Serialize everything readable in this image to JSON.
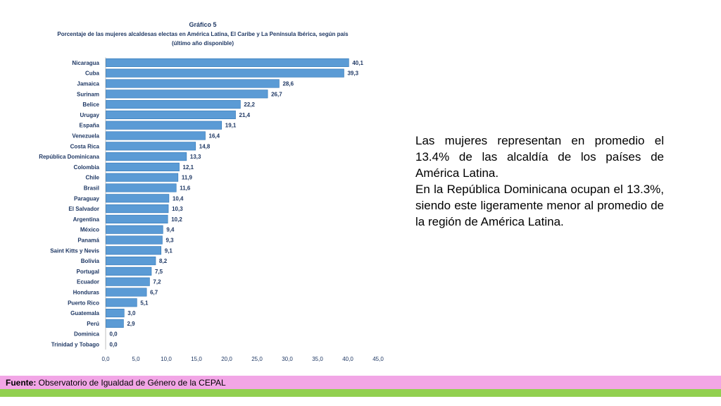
{
  "chart_data": {
    "type": "bar",
    "orientation": "horizontal",
    "title": "Gráfico 5",
    "subtitle": [
      "Porcentaje de las mujeres alcaldesas electas en América Latina, El Caribe y La Península Ibérica, según país",
      "(último año disponible)"
    ],
    "categories": [
      "Nicaragua",
      "Cuba",
      "Jamaica",
      "Surinam",
      "Belice",
      "Urugay",
      "España",
      "Venezuela",
      "Costa Rica",
      "República Dominicana",
      "Colombia",
      "Chile",
      "Brasil",
      "Paraguay",
      "El Salvador",
      "Argentina",
      "México",
      "Panamá",
      "Saint Kitts y Nevis",
      "Bolivia",
      "Portugal",
      "Ecuador",
      "Honduras",
      "Puerto Rico",
      "Guatemala",
      "Perú",
      "Dominica",
      "Trinidad y Tobago"
    ],
    "values": [
      40.1,
      39.3,
      28.6,
      26.7,
      22.2,
      21.4,
      19.1,
      16.4,
      14.8,
      13.3,
      12.1,
      11.9,
      11.6,
      10.4,
      10.3,
      10.2,
      9.4,
      9.3,
      9.1,
      8.2,
      7.5,
      7.2,
      6.7,
      5.1,
      3.0,
      2.9,
      0.0,
      0.0
    ],
    "value_labels": [
      "40,1",
      "39,3",
      "28,6",
      "26,7",
      "22,2",
      "21,4",
      "19,1",
      "16,4",
      "14,8",
      "13,3",
      "12,1",
      "11,9",
      "11,6",
      "10,4",
      "10,3",
      "10,2",
      "9,4",
      "9,3",
      "9,1",
      "8,2",
      "7,5",
      "7,2",
      "6,7",
      "5,1",
      "3,0",
      "2,9",
      "0,0",
      "0,0"
    ],
    "xlim": [
      0,
      45
    ],
    "x_ticks": [
      "0,0",
      "5,0",
      "10,0",
      "15,0",
      "20,0",
      "25,0",
      "30,0",
      "35,0",
      "40,0",
      "45,0"
    ],
    "xlabel": "",
    "ylabel": "",
    "grid": false,
    "bar_color": "#5b9bd5"
  },
  "note": {
    "paragraph1": "Las mujeres representan en promedio el 13.4% de las alcaldía de los países de América Latina.",
    "paragraph2": "En la República Dominicana ocupan el 13.3%, siendo este ligeramente menor al promedio de la región de América Latina."
  },
  "footer": {
    "label": "Fuente:",
    "text": " Observatorio de Igualdad de Género de la CEPAL",
    "pink": "#f2a6e6",
    "green": "#92d050"
  }
}
